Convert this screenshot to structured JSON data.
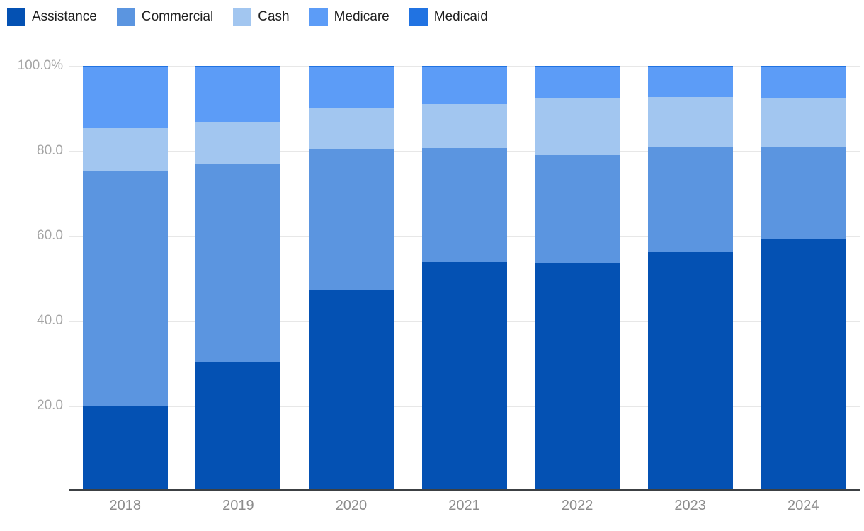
{
  "page": {
    "background": "#ffffff"
  },
  "chart_data": {
    "type": "bar",
    "stacked": true,
    "stacking": "percent",
    "title": "",
    "xlabel": "",
    "ylabel": "",
    "grid": true,
    "legend_position": "top-left",
    "categories": [
      "2018",
      "2019",
      "2020",
      "2021",
      "2022",
      "2023",
      "2024"
    ],
    "series": [
      {
        "name": "Assistance",
        "color": "#0451b3",
        "values": [
          19.8,
          30.3,
          47.4,
          53.9,
          53.5,
          56.1,
          59.3
        ]
      },
      {
        "name": "Commercial",
        "color": "#5b95e0",
        "values": [
          55.5,
          46.7,
          33.0,
          26.8,
          25.5,
          24.7,
          21.5
        ]
      },
      {
        "name": "Cash",
        "color": "#a2c6f0",
        "values": [
          10.0,
          9.8,
          9.6,
          10.3,
          13.4,
          11.8,
          11.6
        ]
      },
      {
        "name": "Medicare",
        "color": "#5c9cf7",
        "values": [
          14.5,
          13.0,
          9.8,
          8.8,
          7.4,
          7.2,
          7.4
        ]
      },
      {
        "name": "Medicaid",
        "color": "#2173e2",
        "values": [
          0.2,
          0.2,
          0.2,
          0.2,
          0.2,
          0.2,
          0.2
        ]
      }
    ],
    "yaxis": {
      "ticks": [
        "100.0%",
        "80.0",
        "60.0",
        "40.0",
        "20.0"
      ],
      "tick_values": [
        100,
        80,
        60,
        40,
        20
      ],
      "ylim": [
        0,
        100
      ]
    }
  }
}
